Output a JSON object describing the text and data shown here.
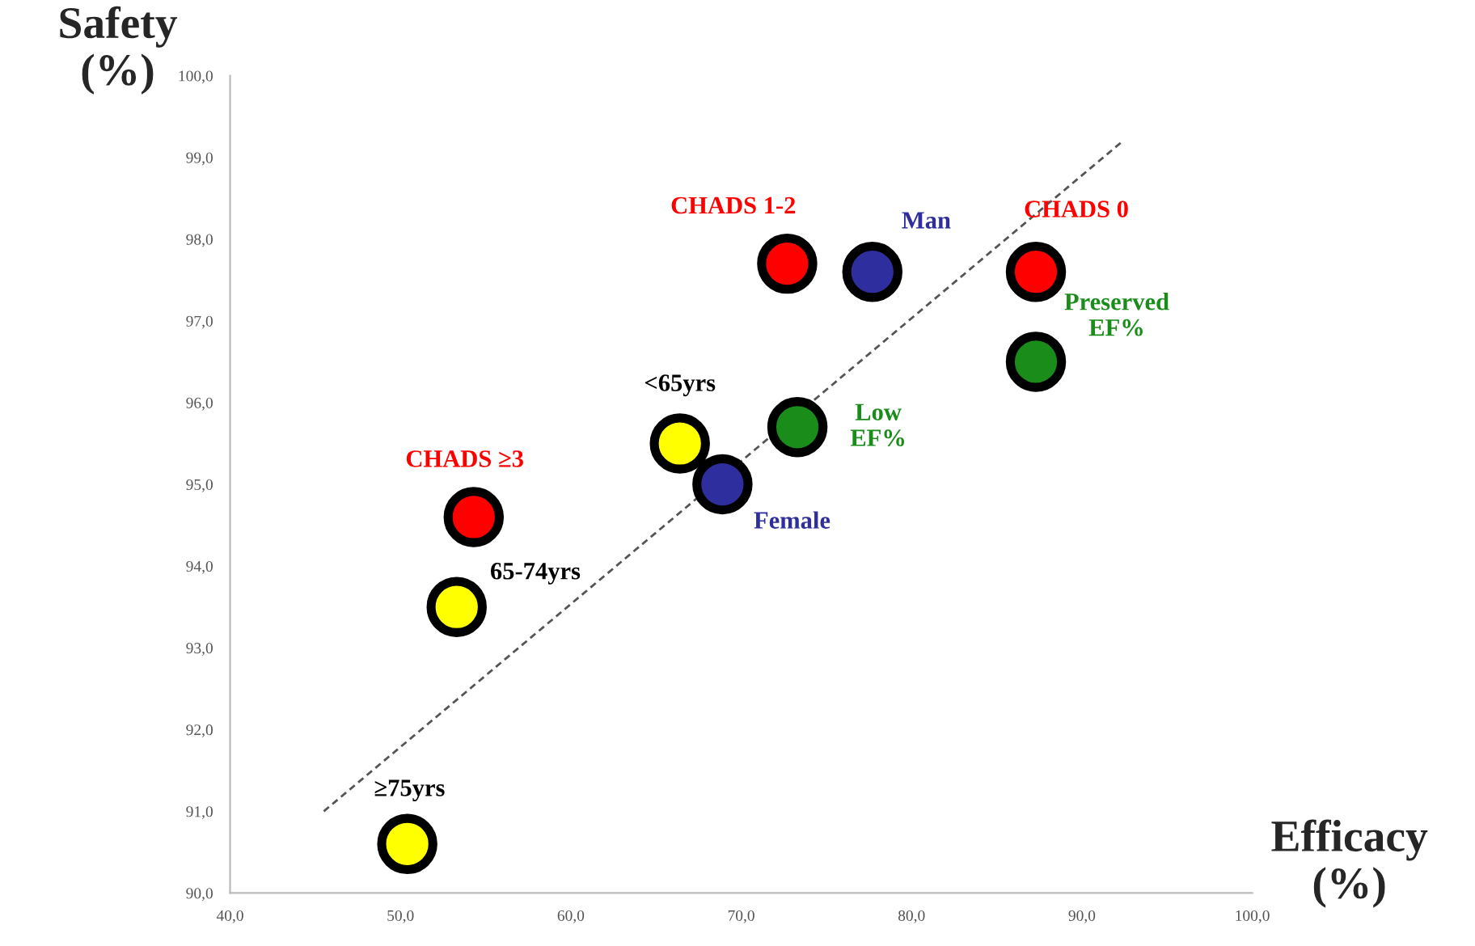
{
  "chart_data": {
    "type": "scatter",
    "xlabel": "Efficacy\n(%)",
    "ylabel": "Safety\n(%)",
    "xlim": [
      40,
      100
    ],
    "ylim": [
      90,
      100
    ],
    "xticks": [
      {
        "value": 40,
        "label": "40,0"
      },
      {
        "value": 50,
        "label": "50,0"
      },
      {
        "value": 60,
        "label": "60,0"
      },
      {
        "value": 70,
        "label": "70,0"
      },
      {
        "value": 80,
        "label": "80,0"
      },
      {
        "value": 90,
        "label": "90,0"
      },
      {
        "value": 100,
        "label": "100,0"
      }
    ],
    "yticks": [
      {
        "value": 90,
        "label": "90,0"
      },
      {
        "value": 91,
        "label": "91,0"
      },
      {
        "value": 92,
        "label": "92,0"
      },
      {
        "value": 93,
        "label": "93,0"
      },
      {
        "value": 94,
        "label": "94,0"
      },
      {
        "value": 95,
        "label": "95,0"
      },
      {
        "value": 96,
        "label": "96,0"
      },
      {
        "value": 97,
        "label": "97,0"
      },
      {
        "value": 98,
        "label": "98,0"
      },
      {
        "value": 99,
        "label": "99,0"
      },
      {
        "value": 100,
        "label": "100,0"
      }
    ],
    "grid": false,
    "legend": false,
    "marker": "circle",
    "series": [
      {
        "color": "#ff0000",
        "x": [
          72.7,
          87.3,
          54.3
        ],
        "values": [
          97.7,
          97.6,
          94.6
        ]
      },
      {
        "color": "#2e2e9e",
        "x": [
          77.7,
          68.9
        ],
        "values": [
          97.6,
          95.0
        ]
      },
      {
        "color": "#1a8c1a",
        "x": [
          87.3,
          73.3
        ],
        "values": [
          96.5,
          95.7
        ]
      },
      {
        "color": "#ffff00",
        "x": [
          66.4,
          53.3,
          50.4
        ],
        "values": [
          95.5,
          93.5,
          90.6
        ]
      },
      {
        "type": "line",
        "color": "#555555",
        "line_style": "dashed",
        "marker": "none",
        "x": [
          45.5,
          92.4
        ],
        "values": [
          91.0,
          99.2
        ]
      }
    ],
    "annotations": [
      {
        "text": "CHADS 1-2",
        "x": 72.7,
        "y": 97.7
      },
      {
        "text": "Man",
        "x": 77.7,
        "y": 97.6
      },
      {
        "text": "CHADS 0",
        "x": 87.3,
        "y": 97.6
      },
      {
        "text": "Preserved\nEF%",
        "x": 87.3,
        "y": 96.5
      },
      {
        "text": "Low\nEF%",
        "x": 73.3,
        "y": 95.7
      },
      {
        "text": "<65yrs",
        "x": 66.4,
        "y": 95.5
      },
      {
        "text": "Female",
        "x": 68.9,
        "y": 95.0
      },
      {
        "text": "CHADS ≥3",
        "x": 54.3,
        "y": 94.6
      },
      {
        "text": "65-74yrs",
        "x": 53.3,
        "y": 93.5
      },
      {
        "text": "≥75yrs",
        "x": 50.4,
        "y": 90.6
      }
    ]
  }
}
